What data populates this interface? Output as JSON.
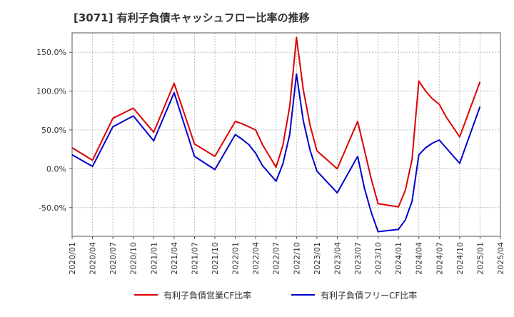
{
  "chart_data": {
    "type": "line",
    "title": "[3071]  有利子負債キャッシュフロー比率の推移",
    "xlabel": "",
    "ylabel": "",
    "ylim": [
      -87,
      175
    ],
    "yticks": [
      150,
      100,
      50,
      0,
      -50
    ],
    "ytick_labels": [
      "150.0%",
      "100.0%",
      "50.0%",
      "0.0%",
      "-50.0%"
    ],
    "xtick_labels": [
      "2020/01",
      "2020/04",
      "2020/07",
      "2020/10",
      "2021/01",
      "2021/04",
      "2021/07",
      "2021/10",
      "2022/01",
      "2022/04",
      "2022/07",
      "2022/10",
      "2023/01",
      "2023/04",
      "2023/07",
      "2023/10",
      "2024/01",
      "2024/04",
      "2024/07",
      "2024/10",
      "2025/01",
      "2025/04"
    ],
    "x_range": [
      "2020/01",
      "2025/04"
    ],
    "grid": true,
    "legend_position": "bottom",
    "series": [
      {
        "name": "有利子負債営業CF比率",
        "color": "#dd0000",
        "points": [
          [
            "2020/01",
            27
          ],
          [
            "2020/04",
            11
          ],
          [
            "2020/07",
            65
          ],
          [
            "2020/10",
            78
          ],
          [
            "2021/01",
            47
          ],
          [
            "2021/04",
            110
          ],
          [
            "2021/07",
            32
          ],
          [
            "2021/10",
            16
          ],
          [
            "2022/01",
            61
          ],
          [
            "2022/02",
            58
          ],
          [
            "2022/03",
            54
          ],
          [
            "2022/04",
            50
          ],
          [
            "2022/05",
            31
          ],
          [
            "2022/07",
            2
          ],
          [
            "2022/08",
            30
          ],
          [
            "2022/09",
            80
          ],
          [
            "2022/10",
            169
          ],
          [
            "2022/11",
            102
          ],
          [
            "2022/12",
            56
          ],
          [
            "2023/01",
            23
          ],
          [
            "2023/04",
            0
          ],
          [
            "2023/07",
            61
          ],
          [
            "2023/08",
            24
          ],
          [
            "2023/09",
            -13
          ],
          [
            "2023/10",
            -45
          ],
          [
            "2024/01",
            -49
          ],
          [
            "2024/02",
            -28
          ],
          [
            "2024/03",
            12
          ],
          [
            "2024/04",
            113
          ],
          [
            "2024/05",
            100
          ],
          [
            "2024/06",
            90
          ],
          [
            "2024/07",
            83
          ],
          [
            "2024/08",
            67
          ],
          [
            "2024/10",
            41
          ],
          [
            "2025/01",
            112
          ]
        ]
      },
      {
        "name": "有利子負債フリーCF比率",
        "color": "#0000cc",
        "points": [
          [
            "2020/01",
            18
          ],
          [
            "2020/04",
            3
          ],
          [
            "2020/07",
            54
          ],
          [
            "2020/10",
            68
          ],
          [
            "2021/01",
            36
          ],
          [
            "2021/04",
            98
          ],
          [
            "2021/07",
            16
          ],
          [
            "2021/10",
            -1
          ],
          [
            "2022/01",
            44
          ],
          [
            "2022/02",
            38
          ],
          [
            "2022/03",
            31
          ],
          [
            "2022/04",
            20
          ],
          [
            "2022/05",
            4
          ],
          [
            "2022/07",
            -16
          ],
          [
            "2022/08",
            6
          ],
          [
            "2022/09",
            44
          ],
          [
            "2022/10",
            122
          ],
          [
            "2022/11",
            62
          ],
          [
            "2022/12",
            24
          ],
          [
            "2023/01",
            -3
          ],
          [
            "2023/04",
            -31
          ],
          [
            "2023/07",
            16
          ],
          [
            "2023/08",
            -25
          ],
          [
            "2023/09",
            -56
          ],
          [
            "2023/10",
            -81
          ],
          [
            "2024/01",
            -78
          ],
          [
            "2024/02",
            -66
          ],
          [
            "2024/03",
            -42
          ],
          [
            "2024/04",
            18
          ],
          [
            "2024/05",
            27
          ],
          [
            "2024/06",
            33
          ],
          [
            "2024/07",
            37
          ],
          [
            "2024/08",
            27
          ],
          [
            "2024/10",
            7
          ],
          [
            "2025/01",
            80
          ]
        ]
      }
    ]
  }
}
